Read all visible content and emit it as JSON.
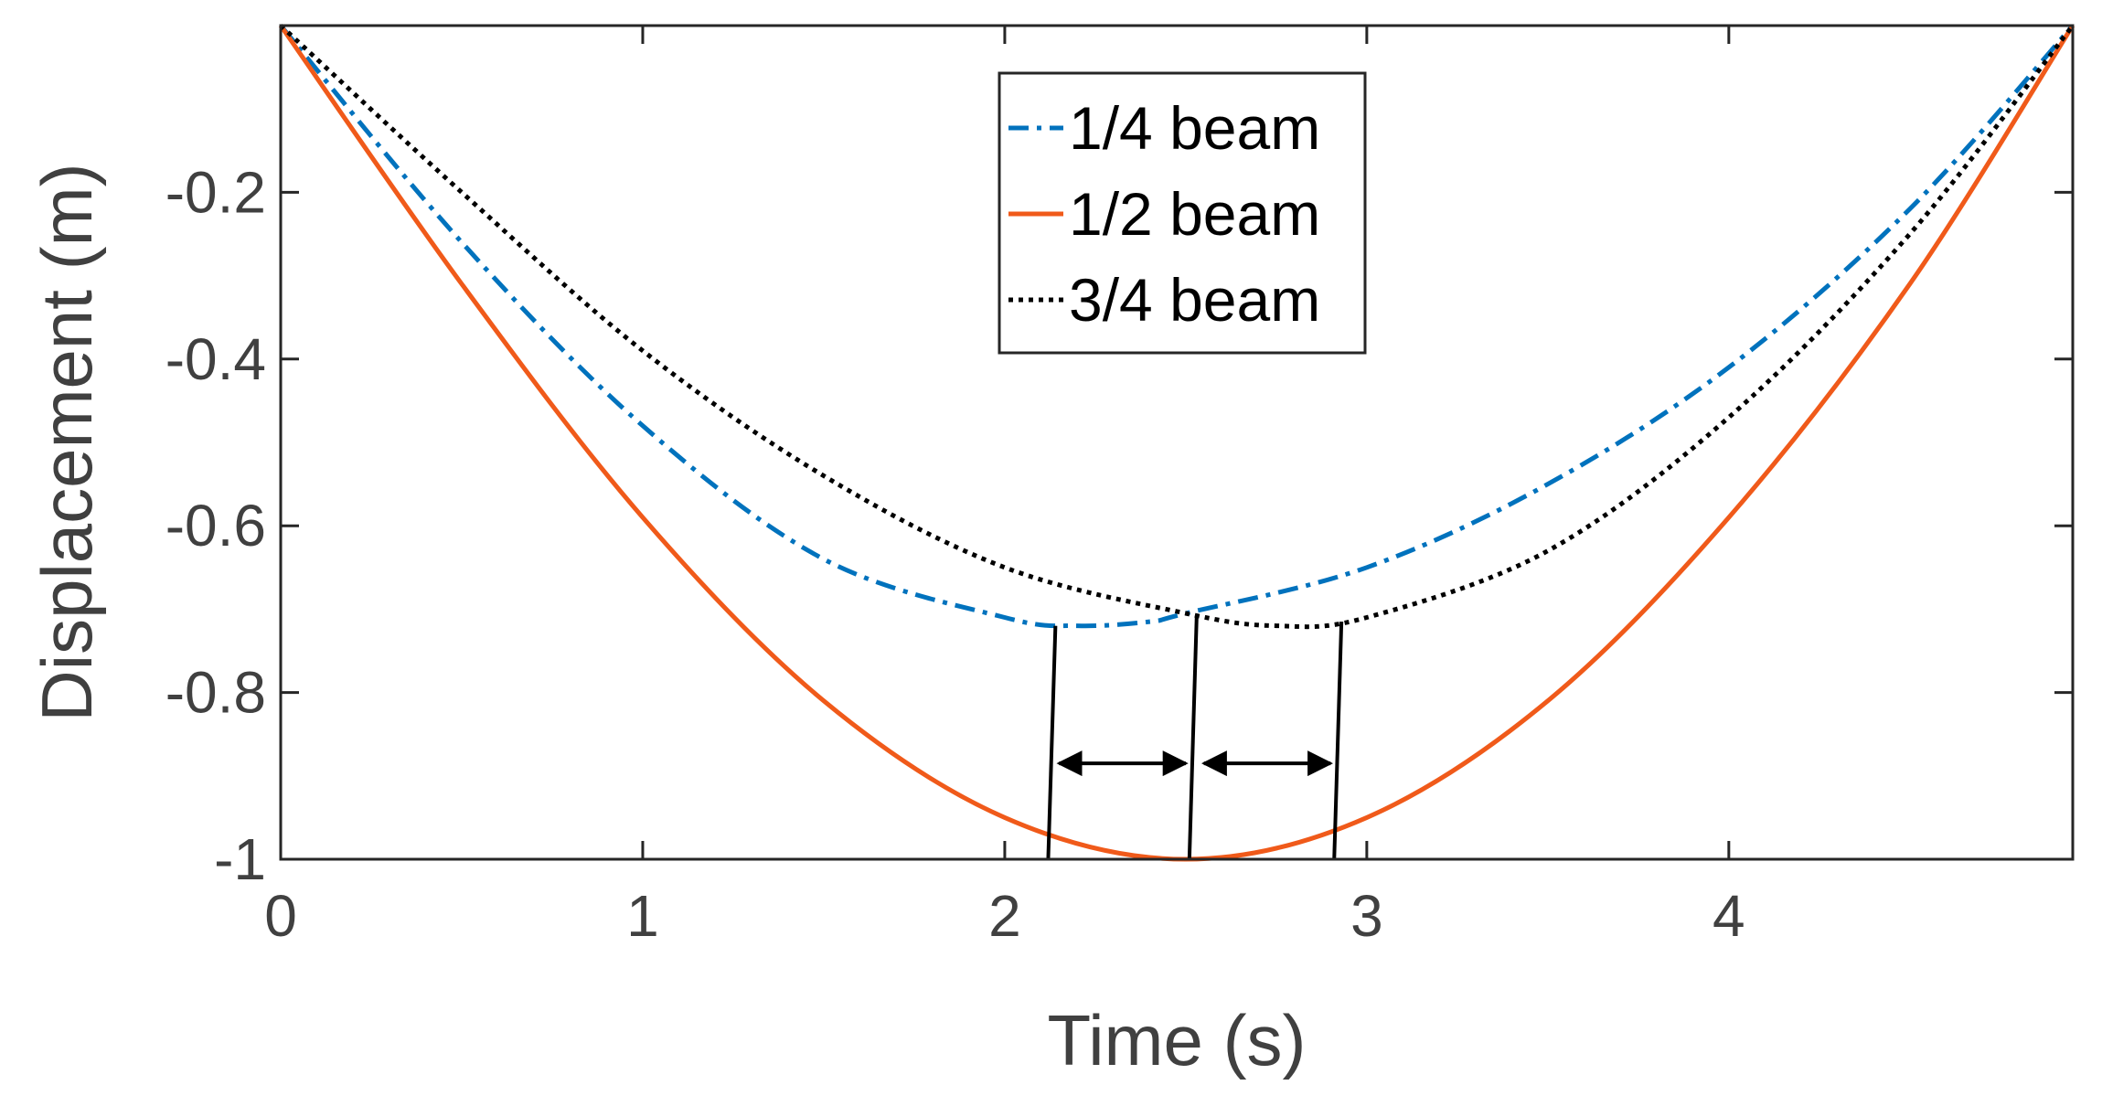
{
  "chart_data": {
    "type": "line",
    "title": "",
    "xlabel": "Time (s)",
    "ylabel": "Displacement (m)",
    "xlim": [
      0,
      4.95
    ],
    "ylim": [
      -1,
      0
    ],
    "x_ticks": [
      0,
      1,
      2,
      3,
      4
    ],
    "x_tick_labels": [
      "0",
      "1",
      "2",
      "3",
      "4"
    ],
    "y_ticks": [
      -1,
      -0.8,
      -0.6,
      -0.4,
      -0.2
    ],
    "y_tick_labels": [
      "-1",
      "-0.8",
      "-0.6",
      "-0.4",
      "-0.2"
    ],
    "grid": false,
    "box": true,
    "legend_position": "top-center",
    "series": [
      {
        "name": "1/4 beam",
        "color": "#0072BD",
        "style": "dash-dot",
        "x": [
          0,
          0.5,
          1.0,
          1.5,
          2.0,
          2.2,
          2.4,
          2.5,
          3.0,
          3.5,
          4.0,
          4.5,
          4.95
        ],
        "y": [
          0,
          -0.26,
          -0.48,
          -0.64,
          -0.71,
          -0.72,
          -0.715,
          -0.705,
          -0.65,
          -0.55,
          -0.41,
          -0.22,
          0
        ]
      },
      {
        "name": "1/2 beam",
        "color": "#F05A1A",
        "style": "solid",
        "x": [
          0,
          0.5,
          1.0,
          1.5,
          2.0,
          2.5,
          3.0,
          3.5,
          4.0,
          4.5,
          4.95
        ],
        "y": [
          0,
          -0.31,
          -0.59,
          -0.81,
          -0.95,
          -1.0,
          -0.95,
          -0.81,
          -0.59,
          -0.31,
          0
        ]
      },
      {
        "name": "3/4 beam",
        "color": "#000000",
        "style": "dotted",
        "x": [
          0,
          0.5,
          1.0,
          1.5,
          2.0,
          2.5,
          2.75,
          3.0,
          3.5,
          4.0,
          4.5,
          4.95
        ],
        "y": [
          0,
          -0.2,
          -0.39,
          -0.54,
          -0.65,
          -0.705,
          -0.72,
          -0.71,
          -0.63,
          -0.47,
          -0.25,
          0
        ]
      }
    ],
    "annotations": {
      "vertical_lines": [
        {
          "x1": 2.12,
          "y1": -1.0,
          "x2": 2.14,
          "y2": -0.72
        },
        {
          "x1": 2.51,
          "y1": -1.0,
          "x2": 2.53,
          "y2": -0.71
        },
        {
          "x1": 2.91,
          "y1": -1.0,
          "x2": 2.93,
          "y2": -0.715
        }
      ],
      "double_arrows": [
        {
          "x1": 2.15,
          "x2": 2.5,
          "y": -0.885
        },
        {
          "x1": 2.55,
          "x2": 2.9,
          "y": -0.885
        }
      ]
    }
  }
}
